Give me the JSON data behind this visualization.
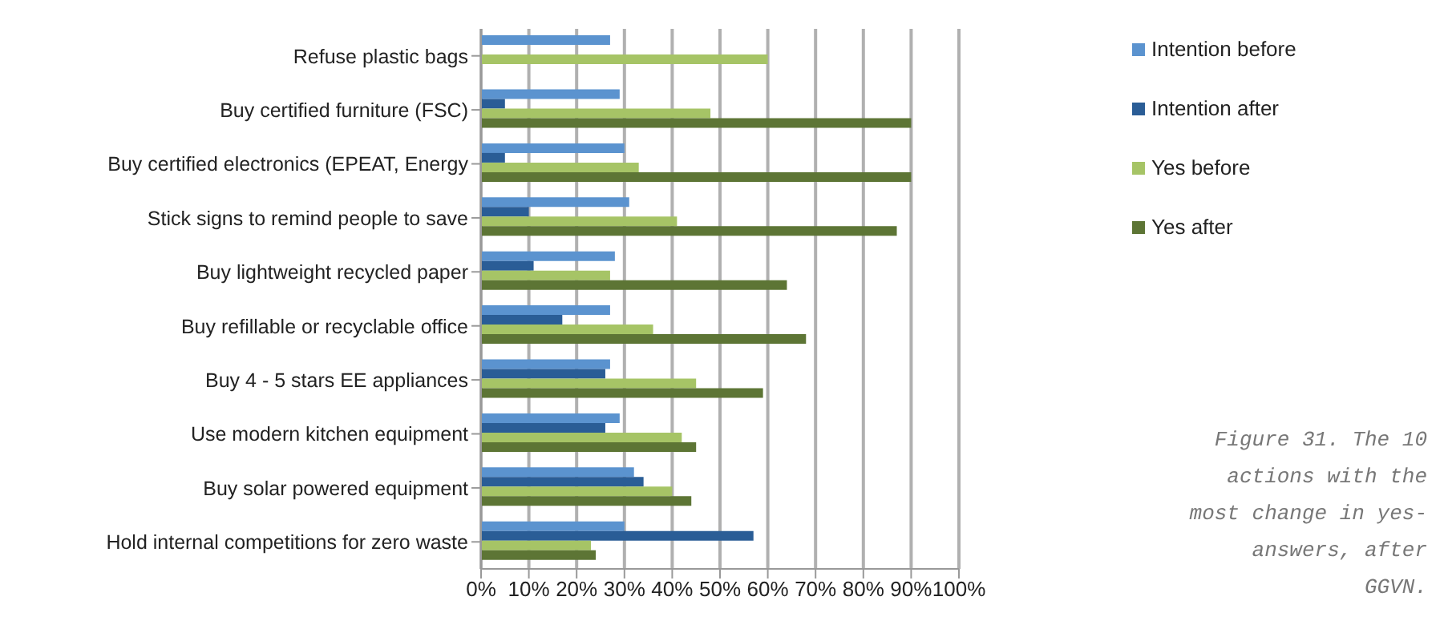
{
  "chart_data": {
    "type": "bar",
    "orientation": "horizontal",
    "categories": [
      "Refuse plastic bags",
      "Buy certified furniture (FSC)",
      "Buy certified electronics (EPEAT, Energy",
      "Stick signs to remind people to save",
      "Buy lightweight recycled paper",
      "Buy refillable or recyclable office",
      "Buy 4 - 5 stars EE appliances",
      "Use modern kitchen equipment",
      "Buy solar powered equipment",
      "Hold internal competitions for zero waste"
    ],
    "series": [
      {
        "name": "Intention before",
        "color": "#5b93cf",
        "values": [
          27,
          29,
          30,
          31,
          28,
          27,
          27,
          29,
          32,
          30
        ]
      },
      {
        "name": "Intention after",
        "color": "#2a5d96",
        "values": [
          null,
          5,
          5,
          10,
          11,
          17,
          26,
          26,
          34,
          57
        ]
      },
      {
        "name": "Yes before",
        "color": "#a6c466",
        "values": [
          60,
          48,
          33,
          41,
          27,
          36,
          45,
          42,
          40,
          23
        ]
      },
      {
        "name": "Yes after",
        "color": "#5d7535",
        "values": [
          null,
          90,
          90,
          87,
          64,
          68,
          59,
          45,
          44,
          24
        ]
      }
    ],
    "xlim": [
      0,
      100
    ],
    "xticks": [
      {
        "value": 0,
        "label": "0%"
      },
      {
        "value": 10,
        "label": "10%"
      },
      {
        "value": 20,
        "label": "20%"
      },
      {
        "value": 30,
        "label": "30%"
      },
      {
        "value": 40,
        "label": "40%"
      },
      {
        "value": 50,
        "label": "50%"
      },
      {
        "value": 60,
        "label": "60%"
      },
      {
        "value": 70,
        "label": "70%"
      },
      {
        "value": 80,
        "label": "80%"
      },
      {
        "value": 90,
        "label": "90%"
      },
      {
        "value": 100,
        "label": "100%"
      }
    ],
    "grid": "x",
    "legend": "top right",
    "annotations": [
      "Figure 31. The 10 actions with the most change in yes-answers, after GGVN."
    ]
  }
}
